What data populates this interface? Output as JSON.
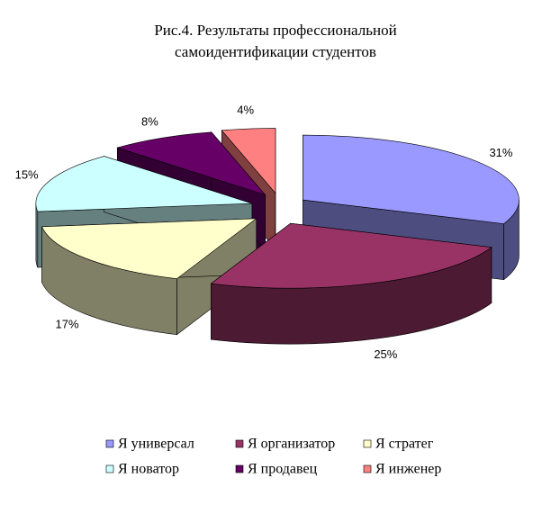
{
  "chart_data": {
    "type": "pie3d",
    "title": [
      "Рис.4.  Результаты профессиональной",
      "самоидентификации студентов"
    ],
    "categories": [
      "Я универсал",
      "Я организатор",
      "Я стратег",
      "Я новатор",
      "Я продавец",
      "Я инженер"
    ],
    "values": [
      31,
      25,
      17,
      15,
      8,
      4
    ],
    "value_labels": [
      "31%",
      "25%",
      "17%",
      "15%",
      "8%",
      "4%"
    ],
    "colors": [
      "#9999ff",
      "#993366",
      "#ffffcc",
      "#ccffff",
      "#660066",
      "#ff8080"
    ],
    "legend": "bottom"
  }
}
